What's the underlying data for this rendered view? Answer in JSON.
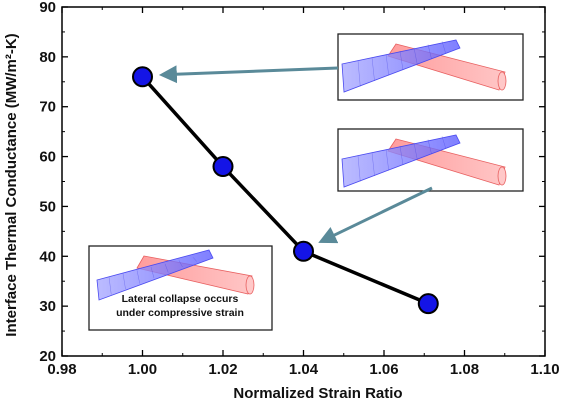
{
  "chart_data": {
    "type": "line",
    "xlabel": "Normalized Strain Ratio",
    "ylabel": "Interface Thermal Conductance (MW/m²-K)",
    "xlim": [
      0.98,
      1.1
    ],
    "ylim": [
      20,
      90
    ],
    "x_ticks": [
      "0.98",
      "1.00",
      "1.02",
      "1.04",
      "1.06",
      "1.08",
      "1.10"
    ],
    "y_ticks": [
      "20",
      "30",
      "40",
      "50",
      "60",
      "70",
      "80",
      "90"
    ],
    "series": [
      {
        "x": [
          1.0,
          1.02,
          1.04,
          1.071
        ],
        "y": [
          76,
          58,
          41,
          30.5
        ]
      }
    ],
    "grid": false,
    "marker_color": "#1414e6",
    "line_color": "#000000",
    "arrow_color": "#5a8a99",
    "insets": [
      {
        "depicts": "nanotube-pair-crossing",
        "points_to_index": 0
      },
      {
        "depicts": "nanotube-pair-crossing",
        "points_to_index": 2
      },
      {
        "depicts": "nanotube-pair-collapsed",
        "caption": [
          "Lateral collapse occurs",
          "under compressive strain"
        ]
      }
    ]
  }
}
